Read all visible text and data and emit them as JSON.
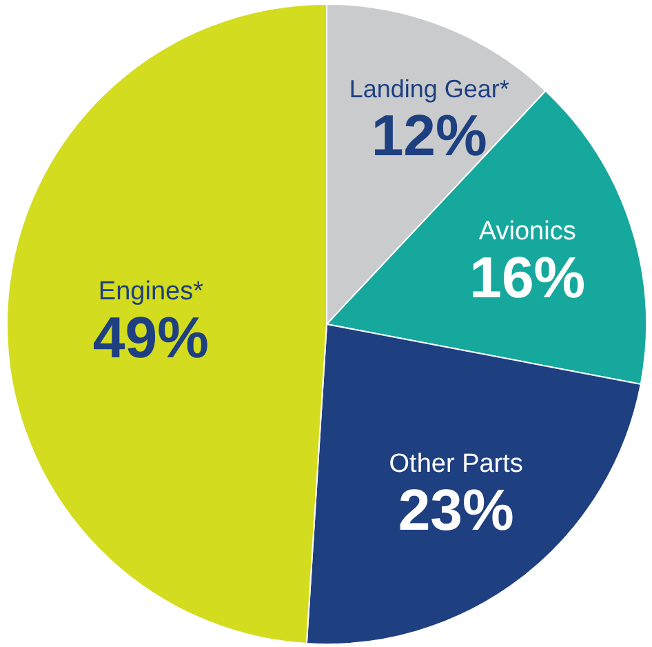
{
  "chart_data": {
    "type": "pie",
    "categories": [
      "Landing Gear*",
      "Avionics",
      "Other Parts",
      "Engines*"
    ],
    "values": [
      12,
      16,
      23,
      49
    ],
    "colors": [
      "#c9cbcc",
      "#17a89d",
      "#1e3f80",
      "#d3dc1e"
    ],
    "value_labels": [
      "12%",
      "16%",
      "23%",
      "49%"
    ]
  }
}
